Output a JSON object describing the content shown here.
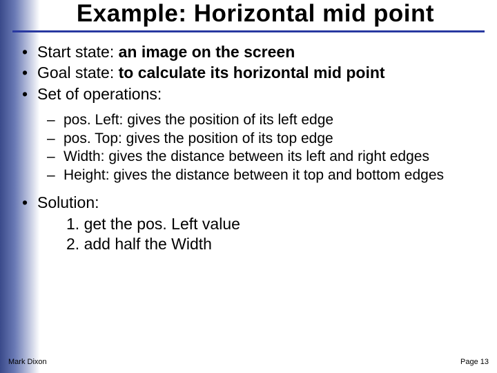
{
  "title": "Example: Horizontal mid point",
  "bullets": {
    "b1_prefix": "Start state: ",
    "b1_bold": "an image on the screen",
    "b2_prefix": "Goal state: ",
    "b2_bold": "to calculate its horizontal mid point",
    "b3": "Set of operations:",
    "ops": {
      "o1": "pos. Left: gives the position of its left edge",
      "o2": "pos. Top: gives the position of its top edge",
      "o3": "Width: gives the distance between its left and right edges",
      "o4": "Height: gives the distance between it top and bottom edges"
    },
    "b4": "Solution:",
    "steps": {
      "s1": "1. get the pos. Left value",
      "s2": "2. add half the Width"
    }
  },
  "footer": {
    "author": "Mark Dixon",
    "page": "Page 13"
  },
  "colors": {
    "rule": "#2838a0",
    "gradient_dark": "#3a4a8a",
    "gradient_mid": "#6a7ab5",
    "background": "#ffffff",
    "text": "#000000"
  },
  "typography": {
    "title_fontsize": 35,
    "level1_fontsize": 23,
    "level2_fontsize": 21,
    "footer_fontsize": 11,
    "font_family": "Arial"
  }
}
